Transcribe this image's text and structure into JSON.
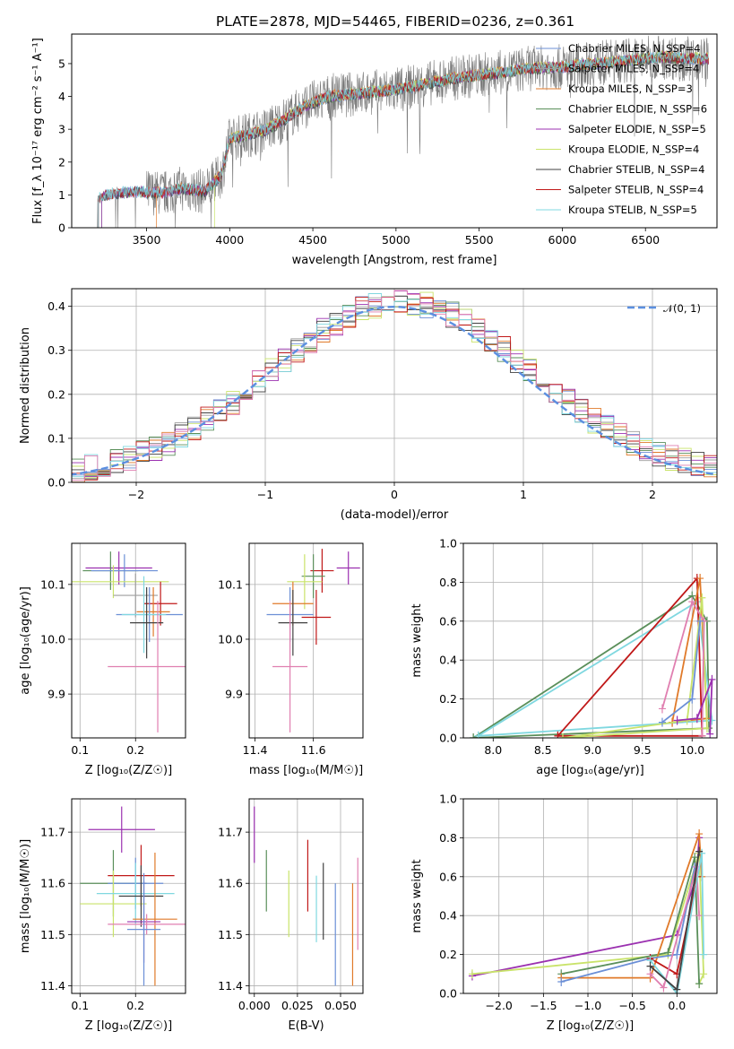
{
  "title": "PLATE=2878, MJD=54465, FIBERID=0236, z=0.361",
  "colors": [
    "#6b8fd6",
    "#9e9e9e",
    "#e07a2a",
    "#5a8f5a",
    "#9b30b0",
    "#c9e36a",
    "#404040",
    "#c01818",
    "#80d8e0",
    "#e07fb0"
  ],
  "chart_data": [
    {
      "id": "spectrum",
      "type": "line",
      "xlabel": "wavelength [Angstrom, rest frame]",
      "ylabel": "Flux [f_λ 10⁻¹⁷ erg cm⁻² s⁻¹ A⁻¹]",
      "xlim": [
        3050,
        6930
      ],
      "ylim": [
        0,
        5.9
      ],
      "xticks": [
        "3500",
        "4000",
        "4500",
        "5000",
        "5500",
        "6000",
        "6500"
      ],
      "yticks": [
        "0",
        "1",
        "2",
        "3",
        "4",
        "5"
      ],
      "legend_position": "top-right",
      "legend": [
        "Chabrier MILES, N_SSP=4",
        "Salpeter MILES, N_SSP=4",
        "Kroupa MILES, N_SSP=3",
        "Chabrier ELODIE, N_SSP=6",
        "Salpeter ELODIE, N_SSP=5",
        "Kroupa ELODIE, N_SSP=4",
        "Chabrier STELIB, N_SSP=4",
        "Salpeter STELIB, N_SSP=4",
        "Kroupa STELIB, N_SSP=5"
      ],
      "continuum": [
        [
          3200,
          0.9
        ],
        [
          3300,
          1.05
        ],
        [
          3450,
          1.1
        ],
        [
          3600,
          1.05
        ],
        [
          3700,
          1.2
        ],
        [
          3850,
          1.1
        ],
        [
          3950,
          1.6
        ],
        [
          4000,
          2.7
        ],
        [
          4200,
          2.95
        ],
        [
          4300,
          3.2
        ],
        [
          4450,
          3.7
        ],
        [
          4600,
          4.0
        ],
        [
          4800,
          4.1
        ],
        [
          5000,
          4.2
        ],
        [
          5200,
          4.4
        ],
        [
          5400,
          4.6
        ],
        [
          5600,
          4.7
        ],
        [
          5800,
          4.85
        ],
        [
          6000,
          4.9
        ],
        [
          6200,
          5.0
        ],
        [
          6400,
          5.1
        ],
        [
          6600,
          5.2
        ],
        [
          6800,
          5.15
        ]
      ]
    },
    {
      "id": "residuals",
      "type": "line",
      "xlabel": "(data-model)/error",
      "ylabel": "Normed distribution",
      "xlim": [
        -2.5,
        2.5
      ],
      "ylim": [
        0,
        0.44
      ],
      "xticks": [
        "−2",
        "−1",
        "0",
        "1",
        "2"
      ],
      "yticks": [
        "0.0",
        "0.1",
        "0.2",
        "0.3",
        "0.4"
      ],
      "grid": true,
      "legend_position": "top-right",
      "legend": [
        "𝒩(0, 1)"
      ]
    },
    {
      "id": "age-vs-Z",
      "type": "scatter",
      "xlabel": "Z [log₁₀(Z/Z☉)]",
      "ylabel": "age  [log₁₀(age/yr)]",
      "xlim": [
        0.085,
        0.29
      ],
      "ylim": [
        9.82,
        10.175
      ],
      "xticks": [
        "0.1",
        "0.2"
      ],
      "yticks": [
        "9.9",
        "10.0",
        "10.1"
      ],
      "grid": true,
      "points": [
        {
          "x": 0.17,
          "y": 10.13,
          "xerr": 0.06,
          "yerr": 0.03,
          "c": 4
        },
        {
          "x": 0.155,
          "y": 10.125,
          "xerr": 0.05,
          "yerr": 0.035,
          "c": 3
        },
        {
          "x": 0.18,
          "y": 10.125,
          "xerr": 0.06,
          "yerr": 0.03,
          "c": 0
        },
        {
          "x": 0.16,
          "y": 10.105,
          "xerr": 0.1,
          "yerr": 0.03,
          "c": 5
        },
        {
          "x": 0.2,
          "y": 10.08,
          "xerr": 0.04,
          "yerr": 0.04,
          "c": 1
        },
        {
          "x": 0.245,
          "y": 10.065,
          "xerr": 0.03,
          "yerr": 0.04,
          "c": 7
        },
        {
          "x": 0.232,
          "y": 10.05,
          "xerr": 0.03,
          "yerr": 0.045,
          "c": 2
        },
        {
          "x": 0.225,
          "y": 10.045,
          "xerr": 0.06,
          "yerr": 0.05,
          "c": 0
        },
        {
          "x": 0.215,
          "y": 10.045,
          "xerr": 0.04,
          "yerr": 0.07,
          "c": 8
        },
        {
          "x": 0.22,
          "y": 10.03,
          "xerr": 0.03,
          "yerr": 0.065,
          "c": 6
        },
        {
          "x": 0.24,
          "y": 9.95,
          "xerr": 0.09,
          "yerr": 0.12,
          "c": 9
        }
      ]
    },
    {
      "id": "age-vs-mass",
      "type": "scatter",
      "xlabel": "mass [log₁₀(M/M☉)]",
      "ylabel": "",
      "xlim": [
        11.38,
        11.77
      ],
      "ylim": [
        9.82,
        10.175
      ],
      "xticks": [
        "11.4",
        "11.6"
      ],
      "yticks": [
        "9.9",
        "10.0",
        "10.1"
      ],
      "grid": true,
      "points": [
        {
          "x": 11.72,
          "y": 10.13,
          "xerr": 0.04,
          "yerr": 0.03,
          "c": 4
        },
        {
          "x": 11.63,
          "y": 10.125,
          "xerr": 0.04,
          "yerr": 0.04,
          "c": 7
        },
        {
          "x": 11.6,
          "y": 10.115,
          "xerr": 0.04,
          "yerr": 0.04,
          "c": 3
        },
        {
          "x": 11.57,
          "y": 10.105,
          "xerr": 0.06,
          "yerr": 0.05,
          "c": 5
        },
        {
          "x": 11.53,
          "y": 10.065,
          "xerr": 0.07,
          "yerr": 0.04,
          "c": 2
        },
        {
          "x": 11.52,
          "y": 10.045,
          "xerr": 0.08,
          "yerr": 0.05,
          "c": 0
        },
        {
          "x": 11.61,
          "y": 10.04,
          "xerr": 0.05,
          "yerr": 0.05,
          "c": 7
        },
        {
          "x": 11.53,
          "y": 10.03,
          "xerr": 0.05,
          "yerr": 0.06,
          "c": 6
        },
        {
          "x": 11.52,
          "y": 9.95,
          "xerr": 0.06,
          "yerr": 0.12,
          "c": 9
        }
      ]
    },
    {
      "id": "massweight-vs-age",
      "type": "line",
      "xlabel": "age  [log₁₀(age/yr)]",
      "ylabel": "mass weight",
      "xlim": [
        7.7,
        10.25
      ],
      "ylim": [
        0,
        1.0
      ],
      "xticks": [
        "8.0",
        "8.5",
        "9.0",
        "9.5",
        "10.0"
      ],
      "yticks": [
        "0.0",
        "0.2",
        "0.4",
        "0.6",
        "0.8",
        "1.0"
      ],
      "grid": true,
      "series": [
        {
          "c": 3,
          "pts": [
            [
              7.8,
              0.0
            ],
            [
              10.0,
              0.73
            ],
            [
              10.15,
              0.6
            ],
            [
              10.17,
              0.05
            ],
            [
              7.8,
              0.0
            ]
          ]
        },
        {
          "c": 8,
          "pts": [
            [
              7.85,
              0.01
            ],
            [
              10.05,
              0.7
            ],
            [
              10.2,
              0.09
            ],
            [
              7.85,
              0.01
            ]
          ]
        },
        {
          "c": 7,
          "pts": [
            [
              8.65,
              0.01
            ],
            [
              10.05,
              0.82
            ],
            [
              10.1,
              0.01
            ],
            [
              8.65,
              0.01
            ]
          ]
        },
        {
          "c": 2,
          "pts": [
            [
              9.8,
              0.08
            ],
            [
              10.08,
              0.82
            ],
            [
              10.15,
              0.1
            ],
            [
              9.8,
              0.08
            ]
          ]
        },
        {
          "c": 5,
          "pts": [
            [
              8.7,
              0.0
            ],
            [
              9.95,
              0.09
            ],
            [
              10.1,
              0.72
            ],
            [
              10.15,
              0.05
            ],
            [
              8.7,
              0.0
            ]
          ]
        },
        {
          "c": 9,
          "pts": [
            [
              9.7,
              0.15
            ],
            [
              10.0,
              0.7
            ],
            [
              10.12,
              0.6
            ],
            [
              10.1,
              0.01
            ]
          ]
        },
        {
          "c": 4,
          "pts": [
            [
              9.85,
              0.09
            ],
            [
              10.05,
              0.1
            ],
            [
              10.2,
              0.3
            ],
            [
              10.18,
              0.02
            ]
          ]
        },
        {
          "c": 0,
          "pts": [
            [
              9.7,
              0.08
            ],
            [
              10.0,
              0.2
            ],
            [
              10.08,
              0.6
            ]
          ]
        }
      ]
    },
    {
      "id": "mass-vs-Z",
      "type": "scatter",
      "xlabel": "Z [log₁₀(Z/Z☉)]",
      "ylabel": "mass [log₁₀(M/M☉)]",
      "xlim": [
        0.085,
        0.29
      ],
      "ylim": [
        11.385,
        11.765
      ],
      "xticks": [
        "0.1",
        "0.2"
      ],
      "yticks": [
        "11.4",
        "11.5",
        "11.6",
        "11.7"
      ],
      "grid": true,
      "points": [
        {
          "x": 0.175,
          "y": 11.705,
          "xerr": 0.06,
          "yerr": 0.045,
          "c": 4
        },
        {
          "x": 0.16,
          "y": 11.6,
          "xerr": 0.06,
          "yerr": 0.065,
          "c": 3
        },
        {
          "x": 0.21,
          "y": 11.615,
          "xerr": 0.06,
          "yerr": 0.06,
          "c": 7
        },
        {
          "x": 0.2,
          "y": 11.6,
          "xerr": 0.05,
          "yerr": 0.05,
          "c": 0
        },
        {
          "x": 0.16,
          "y": 11.56,
          "xerr": 0.06,
          "yerr": 0.065,
          "c": 5
        },
        {
          "x": 0.2,
          "y": 11.58,
          "xerr": 0.07,
          "yerr": 0.06,
          "c": 8
        },
        {
          "x": 0.21,
          "y": 11.575,
          "xerr": 0.04,
          "yerr": 0.06,
          "c": 6
        },
        {
          "x": 0.235,
          "y": 11.53,
          "xerr": 0.04,
          "yerr": 0.13,
          "c": 2
        },
        {
          "x": 0.215,
          "y": 11.525,
          "xerr": 0.03,
          "yerr": 0.08,
          "c": 4
        },
        {
          "x": 0.22,
          "y": 11.52,
          "xerr": 0.07,
          "yerr": 0.02,
          "c": 9
        },
        {
          "x": 0.215,
          "y": 11.51,
          "xerr": 0.03,
          "yerr": 0.11,
          "c": 0
        }
      ]
    },
    {
      "id": "mass-vs-ebv",
      "type": "scatter",
      "xlabel": "E(B-V)",
      "ylabel": "",
      "xlim": [
        -0.003,
        0.063
      ],
      "ylim": [
        11.385,
        11.765
      ],
      "xticks": [
        "0.000",
        "0.025",
        "0.050"
      ],
      "yticks": [
        "11.4",
        "11.5",
        "11.6",
        "11.7"
      ],
      "grid": true,
      "points": [
        {
          "x": 0.0,
          "y": 11.695,
          "xerr": 0,
          "yerr": 0.055,
          "c": 4
        },
        {
          "x": 0.007,
          "y": 11.605,
          "xerr": 0,
          "yerr": 0.06,
          "c": 3
        },
        {
          "x": 0.02,
          "y": 11.56,
          "xerr": 0,
          "yerr": 0.065,
          "c": 5
        },
        {
          "x": 0.031,
          "y": 11.615,
          "xerr": 0,
          "yerr": 0.07,
          "c": 7
        },
        {
          "x": 0.036,
          "y": 11.55,
          "xerr": 0,
          "yerr": 0.065,
          "c": 8
        },
        {
          "x": 0.04,
          "y": 11.565,
          "xerr": 0,
          "yerr": 0.075,
          "c": 6
        },
        {
          "x": 0.047,
          "y": 11.5,
          "xerr": 0,
          "yerr": 0.1,
          "c": 0
        },
        {
          "x": 0.057,
          "y": 11.5,
          "xerr": 0,
          "yerr": 0.1,
          "c": 2
        },
        {
          "x": 0.06,
          "y": 11.56,
          "xerr": 0,
          "yerr": 0.09,
          "c": 9
        }
      ]
    },
    {
      "id": "massweight-vs-Z",
      "type": "line",
      "xlabel": "Z [log₁₀(Z/Z☉)]",
      "ylabel": "mass weight",
      "xlim": [
        -2.4,
        0.45
      ],
      "ylim": [
        0,
        1.0
      ],
      "xticks": [
        "−2.0",
        "−1.5",
        "−1.0",
        "−0.5",
        "0.0"
      ],
      "yticks": [
        "0.0",
        "0.2",
        "0.4",
        "0.6",
        "0.8",
        "1.0"
      ],
      "grid": true,
      "series": [
        {
          "c": 4,
          "pts": [
            [
              -2.3,
              0.09
            ],
            [
              0.0,
              0.3
            ],
            [
              0.22,
              0.6
            ],
            [
              0.25,
              0.8
            ]
          ]
        },
        {
          "c": 5,
          "pts": [
            [
              -2.3,
              0.1
            ],
            [
              -0.1,
              0.2
            ],
            [
              0.25,
              0.72
            ],
            [
              0.3,
              0.1
            ],
            [
              0.25,
              0.05
            ]
          ]
        },
        {
          "c": 3,
          "pts": [
            [
              -1.3,
              0.1
            ],
            [
              -0.1,
              0.21
            ],
            [
              0.2,
              0.7
            ],
            [
              0.25,
              0.05
            ]
          ]
        },
        {
          "c": 2,
          "pts": [
            [
              -1.3,
              0.08
            ],
            [
              -0.3,
              0.08
            ],
            [
              0.25,
              0.82
            ],
            [
              0.28,
              0.6
            ]
          ]
        },
        {
          "c": 0,
          "pts": [
            [
              -1.3,
              0.06
            ],
            [
              -0.3,
              0.18
            ],
            [
              0.0,
              0.2
            ],
            [
              0.2,
              0.65
            ]
          ]
        },
        {
          "c": 7,
          "pts": [
            [
              -0.3,
              0.18
            ],
            [
              0.0,
              0.1
            ],
            [
              0.23,
              0.6
            ]
          ]
        },
        {
          "c": 9,
          "pts": [
            [
              -0.3,
              0.1
            ],
            [
              -0.15,
              0.03
            ],
            [
              0.22,
              0.65
            ],
            [
              0.25,
              0.4
            ]
          ]
        },
        {
          "c": 8,
          "pts": [
            [
              -0.3,
              0.17
            ],
            [
              0.0,
              0.0
            ],
            [
              0.28,
              0.72
            ],
            [
              0.3,
              0.2
            ]
          ]
        },
        {
          "c": 6,
          "pts": [
            [
              -0.3,
              0.14
            ],
            [
              0.0,
              0.02
            ],
            [
              0.25,
              0.73
            ]
          ]
        }
      ]
    }
  ]
}
